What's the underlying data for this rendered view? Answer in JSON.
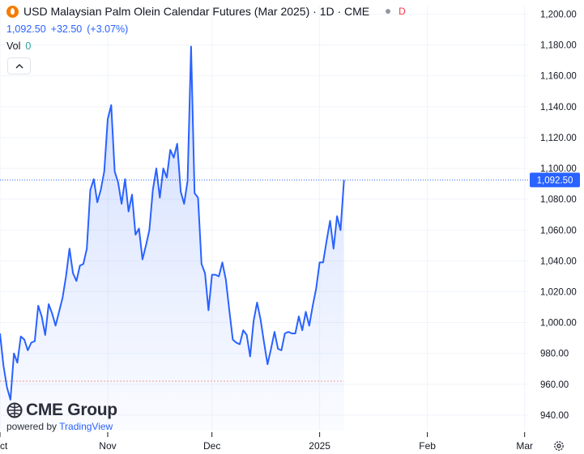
{
  "header": {
    "title": "USD Malaysian Palm Olein Calendar Futures (Mar 2025) · 1D · CME",
    "badge": "D"
  },
  "quote": {
    "last": "1,092.50",
    "change": "+32.50",
    "change_pct": "(+3.07%)"
  },
  "volume": {
    "label": "Vol",
    "value": "0"
  },
  "branding": {
    "name": "CME Group",
    "powered_by": "powered by",
    "platform": "TradingView"
  },
  "colors": {
    "line": "#2962ff",
    "price_tag": "#2962ff",
    "low_line": "#ef9a9a"
  },
  "chart_data": {
    "type": "area",
    "yticks": [
      940,
      960,
      980,
      1000,
      1020,
      1040,
      1060,
      1080,
      1100,
      1120,
      1140,
      1160,
      1180,
      1200
    ],
    "ytick_labels": [
      "940.00",
      "960.00",
      "980.00",
      "1,000.00",
      "1,020.00",
      "1,040.00",
      "1,060.00",
      "1,080.00",
      "1,100.00",
      "1,120.00",
      "1,140.00",
      "1,160.00",
      "1,180.00",
      "1,200.00"
    ],
    "ylim": [
      930,
      1205
    ],
    "xticks": [
      {
        "label": "Oct",
        "date": "2024-10-01"
      },
      {
        "label": "Nov",
        "date": "2024-11-01"
      },
      {
        "label": "Dec",
        "date": "2024-12-01"
      },
      {
        "label": "2025",
        "date": "2025-01-01"
      },
      {
        "label": "Feb",
        "date": "2025-02-01"
      },
      {
        "label": "Mar",
        "date": "2025-03-01"
      }
    ],
    "xlim": [
      "2024-10-01",
      "2025-03-02"
    ],
    "last_value": 1092.5,
    "last_label": "1,092.50",
    "low_value": 962,
    "series": [
      {
        "values": [
          [
            "2024-10-01",
            993
          ],
          [
            "2024-10-02",
            972
          ],
          [
            "2024-10-03",
            958
          ],
          [
            "2024-10-04",
            950
          ],
          [
            "2024-10-05",
            980
          ],
          [
            "2024-10-06",
            974
          ],
          [
            "2024-10-07",
            991
          ],
          [
            "2024-10-08",
            989
          ],
          [
            "2024-10-09",
            982
          ],
          [
            "2024-10-10",
            987
          ],
          [
            "2024-10-11",
            988
          ],
          [
            "2024-10-12",
            1011
          ],
          [
            "2024-10-13",
            1004
          ],
          [
            "2024-10-14",
            992
          ],
          [
            "2024-10-15",
            1012
          ],
          [
            "2024-10-16",
            1006
          ],
          [
            "2024-10-17",
            998
          ],
          [
            "2024-10-18",
            1007
          ],
          [
            "2024-10-19",
            1016
          ],
          [
            "2024-10-20",
            1030
          ],
          [
            "2024-10-21",
            1048
          ],
          [
            "2024-10-22",
            1032
          ],
          [
            "2024-10-23",
            1027
          ],
          [
            "2024-10-24",
            1037
          ],
          [
            "2024-10-25",
            1038
          ],
          [
            "2024-10-26",
            1048
          ],
          [
            "2024-10-27",
            1086
          ],
          [
            "2024-10-28",
            1093
          ],
          [
            "2024-10-29",
            1078
          ],
          [
            "2024-10-30",
            1086
          ],
          [
            "2024-10-31",
            1098
          ],
          [
            "2024-11-01",
            1132
          ],
          [
            "2024-11-02",
            1141
          ],
          [
            "2024-11-03",
            1098
          ],
          [
            "2024-11-04",
            1091
          ],
          [
            "2024-11-05",
            1077
          ],
          [
            "2024-11-06",
            1093
          ],
          [
            "2024-11-07",
            1072
          ],
          [
            "2024-11-08",
            1083
          ],
          [
            "2024-11-09",
            1057
          ],
          [
            "2024-11-10",
            1061
          ],
          [
            "2024-11-11",
            1041
          ],
          [
            "2024-11-12",
            1050
          ],
          [
            "2024-11-13",
            1060
          ],
          [
            "2024-11-14",
            1086
          ],
          [
            "2024-11-15",
            1100
          ],
          [
            "2024-11-16",
            1081
          ],
          [
            "2024-11-17",
            1100
          ],
          [
            "2024-11-18",
            1094
          ],
          [
            "2024-11-19",
            1112
          ],
          [
            "2024-11-20",
            1107
          ],
          [
            "2024-11-21",
            1116
          ],
          [
            "2024-11-22",
            1085
          ],
          [
            "2024-11-23",
            1077
          ],
          [
            "2024-11-24",
            1092
          ],
          [
            "2024-11-25",
            1179
          ],
          [
            "2024-11-26",
            1084
          ],
          [
            "2024-11-27",
            1081
          ],
          [
            "2024-11-28",
            1038
          ],
          [
            "2024-11-29",
            1032
          ],
          [
            "2024-11-30",
            1008
          ],
          [
            "2024-12-01",
            1031
          ],
          [
            "2024-12-02",
            1031
          ],
          [
            "2024-12-03",
            1030
          ],
          [
            "2024-12-04",
            1039
          ],
          [
            "2024-12-05",
            1028
          ],
          [
            "2024-12-06",
            1008
          ],
          [
            "2024-12-07",
            989
          ],
          [
            "2024-12-08",
            987
          ],
          [
            "2024-12-09",
            986
          ],
          [
            "2024-12-10",
            995
          ],
          [
            "2024-12-11",
            992
          ],
          [
            "2024-12-12",
            978
          ],
          [
            "2024-12-13",
            1001
          ],
          [
            "2024-12-14",
            1013
          ],
          [
            "2024-12-15",
            1002
          ],
          [
            "2024-12-16",
            987
          ],
          [
            "2024-12-17",
            973
          ],
          [
            "2024-12-18",
            983
          ],
          [
            "2024-12-19",
            994
          ],
          [
            "2024-12-20",
            983
          ],
          [
            "2024-12-21",
            982
          ],
          [
            "2024-12-22",
            993
          ],
          [
            "2024-12-23",
            994
          ],
          [
            "2024-12-24",
            993
          ],
          [
            "2024-12-25",
            993
          ],
          [
            "2024-12-26",
            1004
          ],
          [
            "2024-12-27",
            995
          ],
          [
            "2024-12-28",
            1007
          ],
          [
            "2024-12-29",
            998
          ],
          [
            "2024-12-30",
            1011
          ],
          [
            "2024-12-31",
            1022
          ],
          [
            "2025-01-01",
            1039
          ],
          [
            "2025-01-02",
            1039
          ],
          [
            "2025-01-03",
            1053
          ],
          [
            "2025-01-04",
            1066
          ],
          [
            "2025-01-05",
            1048
          ],
          [
            "2025-01-06",
            1069
          ],
          [
            "2025-01-07",
            1060
          ],
          [
            "2025-01-08",
            1092.5
          ]
        ]
      }
    ]
  }
}
